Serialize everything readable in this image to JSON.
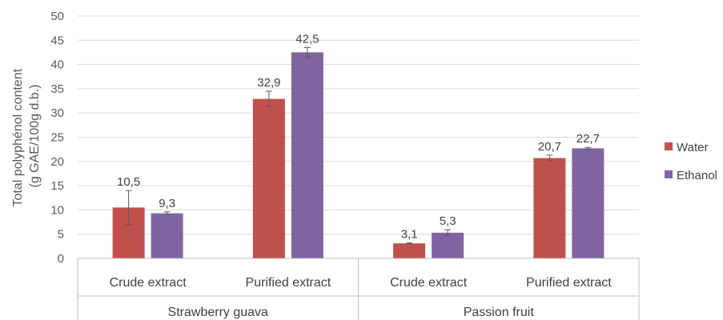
{
  "chart_data": {
    "type": "bar",
    "ylabel_line1": "Total polyphénol content",
    "ylabel_line2": "(g GAE/100g d.b.)",
    "ylim": [
      0,
      50
    ],
    "yticks": [
      "0",
      "5",
      "10",
      "15",
      "20",
      "25",
      "30",
      "35",
      "40",
      "45",
      "50"
    ],
    "grid": true,
    "legend_position": "right",
    "groups": [
      {
        "label": "Strawberry guava",
        "categories": [
          "Crude extract",
          "Purified extract"
        ]
      },
      {
        "label": "Passion fruit",
        "categories": [
          "Crude extract",
          "Purified extract"
        ]
      }
    ],
    "series": [
      {
        "name": "Water",
        "color": "#c0504d",
        "values": [
          10.5,
          32.9,
          3.1,
          20.7
        ],
        "labels": [
          "10,5",
          "32,9",
          "3,1",
          "20,7"
        ],
        "errors": [
          3.5,
          1.6,
          0.1,
          0.6
        ]
      },
      {
        "name": "Ethanol",
        "color": "#8064a2",
        "values": [
          9.3,
          42.5,
          5.3,
          22.7
        ],
        "labels": [
          "9,3",
          "42,5",
          "5,3",
          "22,7"
        ],
        "errors": [
          0.3,
          1.0,
          0.6,
          0.2
        ]
      }
    ]
  }
}
